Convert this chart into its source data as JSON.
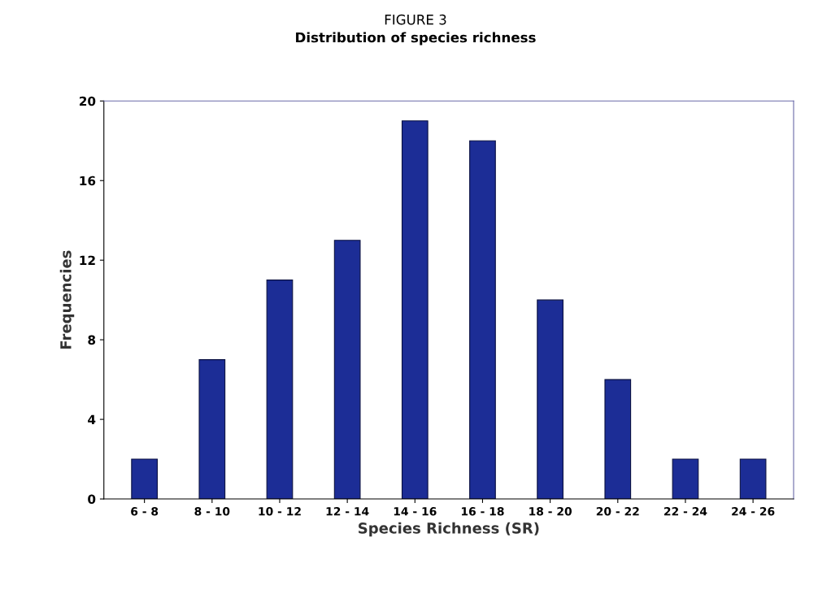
{
  "chart_data": {
    "type": "bar",
    "title": "FIGURE 3",
    "subtitle": "Distribution of species richness",
    "xlabel": "Species Richness (SR)",
    "ylabel": "Frequencies",
    "categories": [
      "6 - 8",
      "8 - 10",
      "10 - 12",
      "12 - 14",
      "14 - 16",
      "16 - 18",
      "18 - 20",
      "20 - 22",
      "22 - 24",
      "24 - 26"
    ],
    "values": [
      2,
      7,
      11,
      13,
      19,
      18,
      10,
      6,
      2,
      2
    ],
    "color": "#1c2d96",
    "ylim": [
      0,
      20
    ],
    "yticks": [
      0,
      4,
      8,
      12,
      16,
      20
    ],
    "grid": false
  }
}
